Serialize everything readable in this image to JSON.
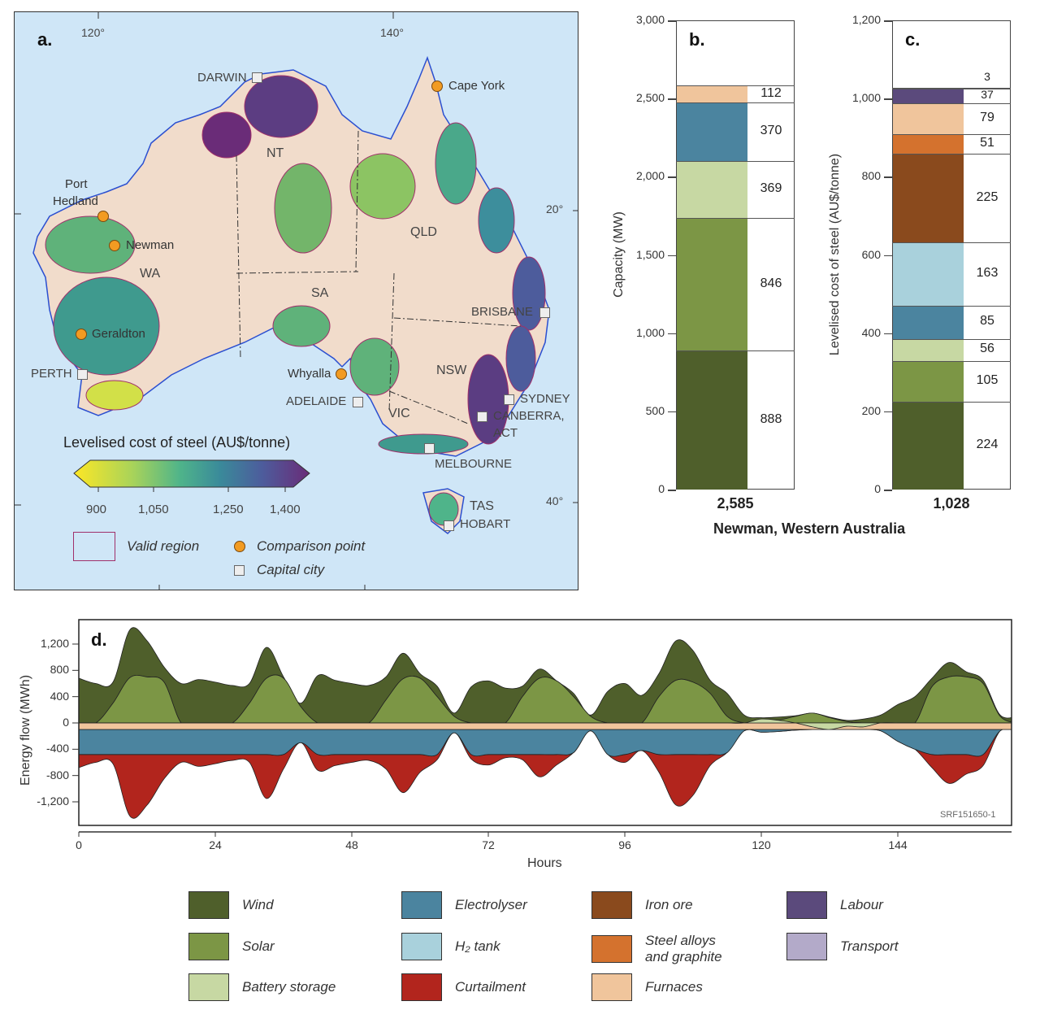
{
  "colors": {
    "wind": "#4f5f2b",
    "solar": "#7c9645",
    "battery": "#c7d8a3",
    "electrolyser": "#4b849f",
    "h2_tank": "#a9d1dc",
    "curtailment": "#b2251d",
    "iron_ore": "#8a4a1d",
    "steel_alloys": "#d4722e",
    "furnaces": "#f0c59c",
    "labour": "#5b4a7c",
    "transport": "#b3aac9",
    "ocean": "#cfe6f7",
    "land": "#f1dccb"
  },
  "map": {
    "panel_label": "a.",
    "lon_ticks": [
      "120°",
      "140°"
    ],
    "lat_ticks": [
      "20°",
      "40°"
    ],
    "states": [
      "NT",
      "WA",
      "SA",
      "QLD",
      "NSW",
      "VIC",
      "TAS"
    ],
    "capitals": [
      "DARWIN",
      "PERTH",
      "ADELAIDE",
      "BRISBANE",
      "SYDNEY",
      "CANBERRA,",
      "ACT",
      "MELBOURNE",
      "HOBART"
    ],
    "comparison_points": [
      "Cape York",
      "Port",
      "Hedland",
      "Newman",
      "Geraldton",
      "Whyalla"
    ],
    "colorbar": {
      "title": "Levelised cost of steel (AU$/tonne)",
      "ticks": [
        "900",
        "1,050",
        "1,250",
        "1,400"
      ]
    },
    "legend": {
      "valid_region": "Valid region",
      "comparison_point": "Comparison point",
      "capital_city": "Capital city"
    }
  },
  "chart_data": [
    {
      "id": "b",
      "type": "bar",
      "panel_label": "b.",
      "stacked": true,
      "ylabel": "Capacity (MW)",
      "ylim": [
        0,
        3000
      ],
      "yticks": [
        "0",
        "500",
        "1,000",
        "1,500",
        "2,000",
        "2,500",
        "3,000"
      ],
      "segments": [
        {
          "name": "Wind",
          "key": "wind",
          "value": 888,
          "label": "888"
        },
        {
          "name": "Solar",
          "key": "solar",
          "value": 846,
          "label": "846"
        },
        {
          "name": "Battery storage",
          "key": "battery",
          "value": 369,
          "label": "369"
        },
        {
          "name": "Electrolyser",
          "key": "electrolyser",
          "value": 370,
          "label": "370"
        },
        {
          "name": "Furnaces",
          "key": "furnaces",
          "value": 112,
          "label": "112"
        }
      ],
      "total": "2,585"
    },
    {
      "id": "c",
      "type": "bar",
      "panel_label": "c.",
      "stacked": true,
      "ylabel": "Levelised cost of steel (AU$/tonne)",
      "ylim": [
        0,
        1200
      ],
      "yticks": [
        "0",
        "200",
        "400",
        "600",
        "800",
        "1,000",
        "1,200"
      ],
      "segments": [
        {
          "name": "Wind",
          "key": "wind",
          "value": 224,
          "label": "224"
        },
        {
          "name": "Solar",
          "key": "solar",
          "value": 105,
          "label": "105"
        },
        {
          "name": "Battery storage",
          "key": "battery",
          "value": 56,
          "label": "56"
        },
        {
          "name": "Electrolyser",
          "key": "electrolyser",
          "value": 85,
          "label": "85"
        },
        {
          "name": "H2 tank",
          "key": "h2_tank",
          "value": 163,
          "label": "163"
        },
        {
          "name": "Iron ore",
          "key": "iron_ore",
          "value": 225,
          "label": "225"
        },
        {
          "name": "Steel alloys and graphite",
          "key": "steel_alloys",
          "value": 51,
          "label": "51"
        },
        {
          "name": "Furnaces",
          "key": "furnaces",
          "value": 79,
          "label": "79"
        },
        {
          "name": "Labour",
          "key": "labour",
          "value": 37,
          "label": "37"
        },
        {
          "name": "Transport",
          "key": "transport",
          "value": 3,
          "label": "3"
        }
      ],
      "total": "1,028"
    },
    {
      "id": "d",
      "type": "area",
      "panel_label": "d.",
      "xlabel": "Hours",
      "ylabel": "Energy flow (MWh)",
      "xlim": [
        0,
        164
      ],
      "ylim": [
        -1560,
        1570
      ],
      "xticks": [
        "0",
        "24",
        "48",
        "72",
        "96",
        "120",
        "144"
      ],
      "yticks": [
        "1,200",
        "800",
        "400",
        "0",
        "-400",
        "-800",
        "-1,200"
      ],
      "x": [
        0,
        3,
        6,
        9,
        12,
        15,
        18,
        21,
        24,
        27,
        30,
        33,
        36,
        39,
        42,
        45,
        48,
        51,
        54,
        57,
        60,
        63,
        66,
        69,
        72,
        75,
        78,
        81,
        84,
        87,
        90,
        93,
        96,
        99,
        102,
        105,
        108,
        111,
        114,
        117,
        120,
        123,
        126,
        129,
        132,
        135,
        138,
        141,
        144,
        147,
        150,
        153,
        156,
        159,
        162,
        165
      ],
      "series": [
        {
          "name": "Solar",
          "key": "solar",
          "values": [
            0,
            0,
            300,
            690,
            700,
            620,
            0,
            0,
            0,
            0,
            300,
            680,
            680,
            250,
            0,
            0,
            0,
            0,
            350,
            670,
            680,
            400,
            100,
            0,
            0,
            0,
            400,
            680,
            640,
            400,
            100,
            0,
            0,
            0,
            400,
            650,
            620,
            450,
            100,
            0,
            0,
            40,
            100,
            150,
            80,
            20,
            0,
            0,
            0,
            0,
            550,
            700,
            700,
            600,
            100,
            0
          ]
        },
        {
          "name": "Wind",
          "key": "wind",
          "values": [
            680,
            600,
            320,
            730,
            550,
            230,
            600,
            660,
            620,
            570,
            300,
            470,
            20,
            50,
            720,
            650,
            600,
            570,
            350,
            390,
            70,
            160,
            50,
            550,
            640,
            530,
            160,
            140,
            0,
            50,
            20,
            480,
            600,
            420,
            350,
            600,
            480,
            200,
            350,
            120,
            80,
            50,
            10,
            0,
            10,
            20,
            60,
            120,
            280,
            400,
            130,
            220,
            80,
            50,
            20,
            100
          ]
        },
        {
          "name": "Battery storage",
          "key": "battery",
          "values": [
            0,
            0,
            0,
            0,
            0,
            0,
            0,
            0,
            0,
            0,
            0,
            0,
            0,
            0,
            0,
            0,
            0,
            0,
            0,
            0,
            0,
            0,
            0,
            0,
            0,
            0,
            0,
            0,
            0,
            0,
            0,
            0,
            0,
            0,
            0,
            0,
            0,
            0,
            0,
            0,
            60,
            40,
            0,
            -60,
            -100,
            -50,
            -60,
            0,
            0,
            0,
            0,
            0,
            0,
            0,
            0,
            0
          ]
        },
        {
          "name": "Furnaces",
          "key": "furnaces",
          "values": [
            -100,
            -100,
            -100,
            -100,
            -100,
            -100,
            -100,
            -100,
            -100,
            -100,
            -100,
            -100,
            -100,
            -100,
            -100,
            -100,
            -100,
            -100,
            -100,
            -100,
            -100,
            -100,
            -100,
            -100,
            -100,
            -100,
            -100,
            -100,
            -100,
            -100,
            -100,
            -100,
            -100,
            -100,
            -100,
            -100,
            -100,
            -100,
            -100,
            -100,
            -100,
            -100,
            -100,
            -100,
            -100,
            -100,
            -100,
            -100,
            -100,
            -100,
            -100,
            -100,
            -100,
            -100,
            -100,
            -100
          ]
        },
        {
          "name": "Electrolyser",
          "key": "electrolyser",
          "values": [
            -380,
            -380,
            -380,
            -380,
            -380,
            -380,
            -380,
            -380,
            -380,
            -380,
            -380,
            -380,
            -380,
            -200,
            -380,
            -380,
            -380,
            -380,
            -380,
            -380,
            -380,
            -380,
            -50,
            -380,
            -380,
            -380,
            -380,
            -380,
            -380,
            -350,
            -20,
            -380,
            -380,
            -320,
            -380,
            -380,
            -380,
            -380,
            -350,
            -20,
            -40,
            -30,
            -10,
            0,
            0,
            0,
            0,
            -20,
            -180,
            -300,
            -380,
            -380,
            -380,
            -380,
            -20,
            0
          ]
        },
        {
          "name": "Curtailment",
          "key": "curtailment",
          "values": [
            -200,
            -120,
            -140,
            -940,
            -770,
            -370,
            -120,
            -180,
            -140,
            -90,
            -120,
            -670,
            -220,
            0,
            -240,
            -170,
            -120,
            -90,
            -220,
            -580,
            -270,
            -80,
            0,
            -70,
            -160,
            -50,
            -80,
            -340,
            -160,
            0,
            0,
            0,
            -120,
            0,
            -270,
            -770,
            -620,
            -170,
            0,
            0,
            0,
            0,
            0,
            0,
            0,
            0,
            0,
            0,
            0,
            0,
            -200,
            -440,
            -300,
            -170,
            0,
            0
          ]
        }
      ],
      "watermark": "SRF151650-1"
    }
  ],
  "shared": {
    "location": "Newman, Western Australia"
  },
  "legend": [
    {
      "key": "wind",
      "label": "Wind"
    },
    {
      "key": "solar",
      "label": "Solar"
    },
    {
      "key": "battery",
      "label": "Battery storage"
    },
    {
      "key": "electrolyser",
      "label": "Electrolyser"
    },
    {
      "key": "h2_tank",
      "label": "H₂ tank"
    },
    {
      "key": "curtailment",
      "label": "Curtailment"
    },
    {
      "key": "iron_ore",
      "label": "Iron ore"
    },
    {
      "key": "steel_alloys",
      "label": "Steel alloys\nand graphite"
    },
    {
      "key": "furnaces",
      "label": "Furnaces"
    },
    {
      "key": "labour",
      "label": "Labour"
    },
    {
      "key": "transport",
      "label": "Transport"
    }
  ]
}
